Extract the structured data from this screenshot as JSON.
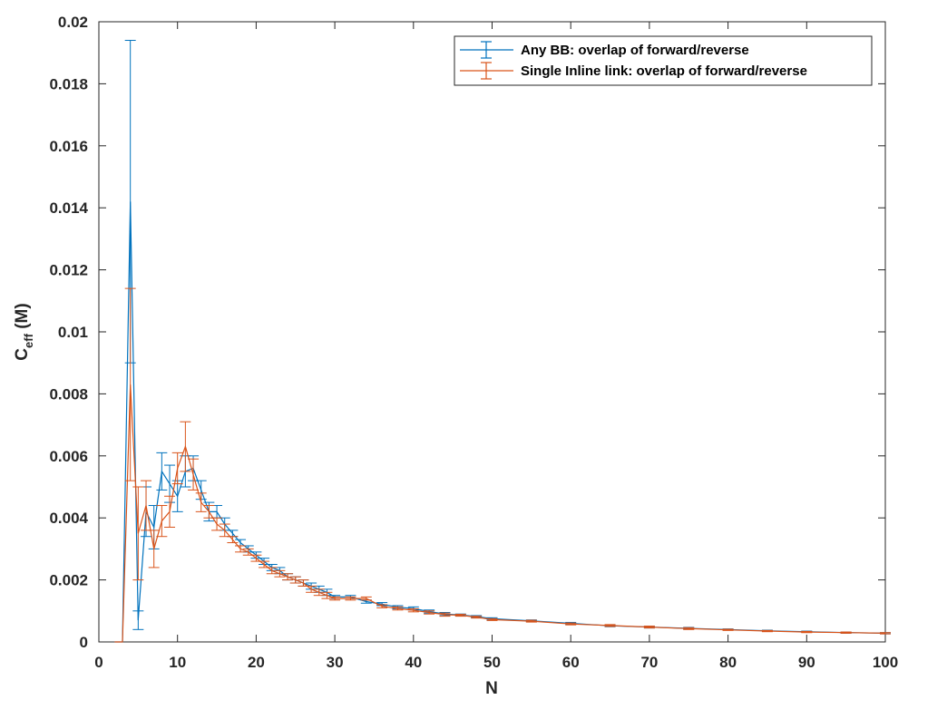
{
  "chart_data": {
    "type": "line",
    "xlabel": "N",
    "ylabel": {
      "base": "C",
      "sub": "eff",
      "unit": " (M)"
    },
    "xlim": [
      0,
      100
    ],
    "ylim": [
      0,
      0.02
    ],
    "xticks": [
      "0",
      "10",
      "20",
      "30",
      "40",
      "50",
      "60",
      "70",
      "80",
      "90",
      "100"
    ],
    "yticks": [
      "0",
      "0.002",
      "0.004",
      "0.006",
      "0.008",
      "0.01",
      "0.012",
      "0.014",
      "0.016",
      "0.018",
      "0.02"
    ],
    "grid": false,
    "legend_position": "top-right",
    "series": [
      {
        "name": "Any BB: overlap of forward/reverse",
        "color": "#0072BD",
        "x": [
          2,
          3,
          4,
          5,
          6,
          7,
          8,
          9,
          10,
          11,
          12,
          13,
          14,
          15,
          16,
          17,
          18,
          19,
          20,
          21,
          22,
          23,
          24,
          25,
          26,
          27,
          28,
          29,
          30,
          32,
          34,
          36,
          38,
          40,
          42,
          44,
          46,
          48,
          50,
          55,
          60,
          65,
          70,
          75,
          80,
          85,
          90,
          95,
          100
        ],
        "y": [
          0,
          0,
          0.0142,
          0.0007,
          0.0042,
          0.0037,
          0.0055,
          0.0051,
          0.0047,
          0.0055,
          0.0056,
          0.0049,
          0.0042,
          0.0042,
          0.0038,
          0.0035,
          0.0032,
          0.003,
          0.0028,
          0.0026,
          0.0024,
          0.0023,
          0.0021,
          0.002,
          0.0019,
          0.0018,
          0.0017,
          0.0016,
          0.00145,
          0.00145,
          0.0013,
          0.00122,
          0.00112,
          0.00108,
          0.00098,
          0.0009,
          0.00087,
          0.00082,
          0.00075,
          0.00068,
          0.0006,
          0.00052,
          0.00048,
          0.00044,
          0.0004,
          0.00036,
          0.00033,
          0.0003,
          0.00028
        ],
        "err": [
          0,
          0,
          0.0052,
          0.0003,
          0.0008,
          0.0007,
          0.0006,
          0.0006,
          0.0005,
          0.0005,
          0.0004,
          0.0003,
          0.0003,
          0.0002,
          0.0002,
          0.0001,
          0.0001,
          0.0001,
          0.0001,
          0.0001,
          0.0001,
          0.0001,
          0.0001,
          0.0001,
          0.0001,
          0.0001,
          0.0001,
          0.0001,
          5e-05,
          5e-05,
          5e-05,
          5e-05,
          5e-05,
          5e-05,
          5e-05,
          5e-05,
          3e-05,
          3e-05,
          3e-05,
          3e-05,
          3e-05,
          3e-05,
          3e-05,
          3e-05,
          2e-05,
          2e-05,
          2e-05,
          2e-05,
          2e-05
        ]
      },
      {
        "name": "Single Inline link: overlap of forward/reverse",
        "color": "#D95319",
        "x": [
          2,
          3,
          4,
          5,
          6,
          7,
          8,
          9,
          10,
          11,
          12,
          13,
          14,
          15,
          16,
          17,
          18,
          19,
          20,
          21,
          22,
          23,
          24,
          25,
          26,
          27,
          28,
          29,
          30,
          32,
          34,
          36,
          38,
          40,
          42,
          44,
          46,
          48,
          50,
          55,
          60,
          65,
          70,
          75,
          80,
          85,
          90,
          95,
          100
        ],
        "y": [
          0,
          0,
          0.0083,
          0.0035,
          0.0044,
          0.003,
          0.0039,
          0.0042,
          0.0056,
          0.0063,
          0.0054,
          0.0045,
          0.0042,
          0.0038,
          0.0036,
          0.0033,
          0.003,
          0.0029,
          0.0027,
          0.0025,
          0.0023,
          0.0022,
          0.0021,
          0.002,
          0.0019,
          0.0017,
          0.0016,
          0.0015,
          0.0014,
          0.0014,
          0.0014,
          0.00115,
          0.00108,
          0.00102,
          0.00095,
          0.00088,
          0.00086,
          0.0008,
          0.00072,
          0.00067,
          0.00058,
          0.00053,
          0.00048,
          0.00043,
          0.00039,
          0.00035,
          0.00032,
          0.0003,
          0.00028
        ],
        "err": [
          0,
          0,
          0.0031,
          0.0015,
          0.0008,
          0.0006,
          0.0005,
          0.0005,
          0.0005,
          0.0008,
          0.0005,
          0.0003,
          0.0002,
          0.0002,
          0.0002,
          0.0001,
          0.0001,
          0.0001,
          0.0001,
          0.0001,
          0.0001,
          0.0001,
          0.0001,
          0.0001,
          0.0001,
          0.0001,
          0.0001,
          0.0001,
          5e-05,
          5e-05,
          5e-05,
          5e-05,
          5e-05,
          5e-05,
          5e-05,
          5e-05,
          3e-05,
          3e-05,
          3e-05,
          3e-05,
          3e-05,
          3e-05,
          3e-05,
          3e-05,
          2e-05,
          2e-05,
          2e-05,
          2e-05,
          2e-05
        ]
      }
    ]
  }
}
